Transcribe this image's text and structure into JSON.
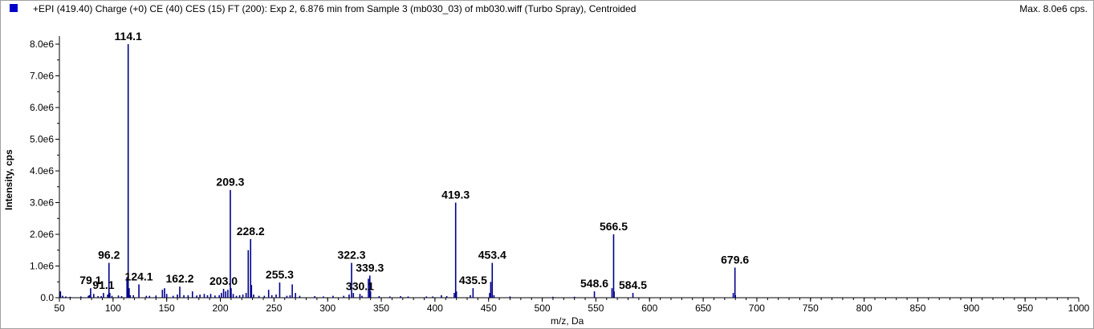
{
  "header": {
    "title": "+EPI (419.40) Charge (+0) CE (40) CES (15) FT (200): Exp 2, 6.876 min from Sample 3 (mb030_03) of mb030.wiff (Turbo Spray), Centroided",
    "max_label": "Max. 8.0e6 cps.",
    "swatch_color": "#0000cc"
  },
  "chart_data": {
    "type": "bar",
    "xlabel": "m/z, Da",
    "ylabel": "Intensity, cps",
    "xlim": [
      50,
      1000
    ],
    "ylim": [
      0,
      8000000
    ],
    "x_ticks": [
      50,
      100,
      150,
      200,
      250,
      300,
      350,
      400,
      450,
      500,
      550,
      600,
      650,
      700,
      750,
      800,
      850,
      900,
      950,
      1000
    ],
    "y_ticks": [
      {
        "value": 0,
        "label": "0.0"
      },
      {
        "value": 1000000,
        "label": "1.0e6"
      },
      {
        "value": 2000000,
        "label": "2.0e6"
      },
      {
        "value": 3000000,
        "label": "3.0e6"
      },
      {
        "value": 4000000,
        "label": "4.0e6"
      },
      {
        "value": 5000000,
        "label": "5.0e6"
      },
      {
        "value": 6000000,
        "label": "6.0e6"
      },
      {
        "value": 7000000,
        "label": "7.0e6"
      },
      {
        "value": 8000000,
        "label": "8.0e6"
      }
    ],
    "grid": false,
    "bar_color": "#00008b",
    "labeled_peaks": [
      {
        "mz": 79.1,
        "intensity": 300000,
        "label": "79.1"
      },
      {
        "mz": 91.1,
        "intensity": 150000,
        "label": "91.1"
      },
      {
        "mz": 96.2,
        "intensity": 1100000,
        "label": "96.2"
      },
      {
        "mz": 114.1,
        "intensity": 8000000,
        "label": "114.1"
      },
      {
        "mz": 124.1,
        "intensity": 420000,
        "label": "124.1"
      },
      {
        "mz": 162.2,
        "intensity": 350000,
        "label": "162.2"
      },
      {
        "mz": 203.0,
        "intensity": 280000,
        "label": "203.0"
      },
      {
        "mz": 209.3,
        "intensity": 3400000,
        "label": "209.3"
      },
      {
        "mz": 228.2,
        "intensity": 1850000,
        "label": "228.2"
      },
      {
        "mz": 255.3,
        "intensity": 480000,
        "label": "255.3"
      },
      {
        "mz": 322.3,
        "intensity": 1100000,
        "label": "322.3"
      },
      {
        "mz": 330.1,
        "intensity": 120000,
        "label": "330.1"
      },
      {
        "mz": 339.3,
        "intensity": 700000,
        "label": "339.3"
      },
      {
        "mz": 419.3,
        "intensity": 3000000,
        "label": "419.3"
      },
      {
        "mz": 435.5,
        "intensity": 300000,
        "label": "435.5"
      },
      {
        "mz": 453.4,
        "intensity": 1100000,
        "label": "453.4"
      },
      {
        "mz": 548.6,
        "intensity": 200000,
        "label": "548.6"
      },
      {
        "mz": 566.5,
        "intensity": 2000000,
        "label": "566.5"
      },
      {
        "mz": 584.5,
        "intensity": 150000,
        "label": "584.5"
      },
      {
        "mz": 679.6,
        "intensity": 950000,
        "label": "679.6"
      }
    ],
    "minor_peaks": [
      {
        "mz": 51,
        "intensity": 200000
      },
      {
        "mz": 53,
        "intensity": 60000
      },
      {
        "mz": 56,
        "intensity": 40000
      },
      {
        "mz": 60,
        "intensity": 30000
      },
      {
        "mz": 70,
        "intensity": 40000
      },
      {
        "mz": 77,
        "intensity": 60000
      },
      {
        "mz": 78,
        "intensity": 80000
      },
      {
        "mz": 82,
        "intensity": 120000
      },
      {
        "mz": 86,
        "intensity": 50000
      },
      {
        "mz": 89,
        "intensity": 50000
      },
      {
        "mz": 95,
        "intensity": 100000
      },
      {
        "mz": 97,
        "intensity": 150000
      },
      {
        "mz": 99,
        "intensity": 60000
      },
      {
        "mz": 105,
        "intensity": 70000
      },
      {
        "mz": 108,
        "intensity": 50000
      },
      {
        "mz": 113,
        "intensity": 650000
      },
      {
        "mz": 115,
        "intensity": 300000
      },
      {
        "mz": 116,
        "intensity": 80000
      },
      {
        "mz": 119,
        "intensity": 80000
      },
      {
        "mz": 131,
        "intensity": 60000
      },
      {
        "mz": 134,
        "intensity": 60000
      },
      {
        "mz": 140,
        "intensity": 70000
      },
      {
        "mz": 146,
        "intensity": 250000
      },
      {
        "mz": 148,
        "intensity": 300000
      },
      {
        "mz": 150,
        "intensity": 120000
      },
      {
        "mz": 156,
        "intensity": 60000
      },
      {
        "mz": 160,
        "intensity": 100000
      },
      {
        "mz": 166,
        "intensity": 80000
      },
      {
        "mz": 170,
        "intensity": 80000
      },
      {
        "mz": 174,
        "intensity": 200000
      },
      {
        "mz": 178,
        "intensity": 70000
      },
      {
        "mz": 181,
        "intensity": 100000
      },
      {
        "mz": 185,
        "intensity": 120000
      },
      {
        "mz": 188,
        "intensity": 80000
      },
      {
        "mz": 191,
        "intensity": 120000
      },
      {
        "mz": 195,
        "intensity": 70000
      },
      {
        "mz": 199,
        "intensity": 80000
      },
      {
        "mz": 201,
        "intensity": 150000
      },
      {
        "mz": 205,
        "intensity": 200000
      },
      {
        "mz": 207,
        "intensity": 250000
      },
      {
        "mz": 210,
        "intensity": 300000
      },
      {
        "mz": 212,
        "intensity": 120000
      },
      {
        "mz": 215,
        "intensity": 60000
      },
      {
        "mz": 218,
        "intensity": 80000
      },
      {
        "mz": 221,
        "intensity": 100000
      },
      {
        "mz": 224,
        "intensity": 150000
      },
      {
        "mz": 226,
        "intensity": 1500000
      },
      {
        "mz": 229,
        "intensity": 400000
      },
      {
        "mz": 231,
        "intensity": 100000
      },
      {
        "mz": 236,
        "intensity": 60000
      },
      {
        "mz": 241,
        "intensity": 60000
      },
      {
        "mz": 245,
        "intensity": 250000
      },
      {
        "mz": 248,
        "intensity": 80000
      },
      {
        "mz": 252,
        "intensity": 100000
      },
      {
        "mz": 262,
        "intensity": 60000
      },
      {
        "mz": 265,
        "intensity": 80000
      },
      {
        "mz": 267,
        "intensity": 420000
      },
      {
        "mz": 270,
        "intensity": 150000
      },
      {
        "mz": 274,
        "intensity": 60000
      },
      {
        "mz": 288,
        "intensity": 50000
      },
      {
        "mz": 296,
        "intensity": 40000
      },
      {
        "mz": 305,
        "intensity": 60000
      },
      {
        "mz": 315,
        "intensity": 60000
      },
      {
        "mz": 320,
        "intensity": 100000
      },
      {
        "mz": 324,
        "intensity": 150000
      },
      {
        "mz": 332,
        "intensity": 60000
      },
      {
        "mz": 338,
        "intensity": 600000
      },
      {
        "mz": 340,
        "intensity": 200000
      },
      {
        "mz": 348,
        "intensity": 50000
      },
      {
        "mz": 358,
        "intensity": 40000
      },
      {
        "mz": 368,
        "intensity": 50000
      },
      {
        "mz": 375,
        "intensity": 40000
      },
      {
        "mz": 392,
        "intensity": 40000
      },
      {
        "mz": 398,
        "intensity": 40000
      },
      {
        "mz": 406,
        "intensity": 80000
      },
      {
        "mz": 411,
        "intensity": 50000
      },
      {
        "mz": 418,
        "intensity": 150000
      },
      {
        "mz": 420,
        "intensity": 200000
      },
      {
        "mz": 433,
        "intensity": 80000
      },
      {
        "mz": 451,
        "intensity": 150000
      },
      {
        "mz": 452,
        "intensity": 500000
      },
      {
        "mz": 455,
        "intensity": 80000
      },
      {
        "mz": 470,
        "intensity": 40000
      },
      {
        "mz": 510,
        "intensity": 30000
      },
      {
        "mz": 530,
        "intensity": 30000
      },
      {
        "mz": 565,
        "intensity": 300000
      },
      {
        "mz": 567,
        "intensity": 200000
      },
      {
        "mz": 678,
        "intensity": 150000
      },
      {
        "mz": 680,
        "intensity": 80000
      }
    ],
    "labels_bold": true
  }
}
